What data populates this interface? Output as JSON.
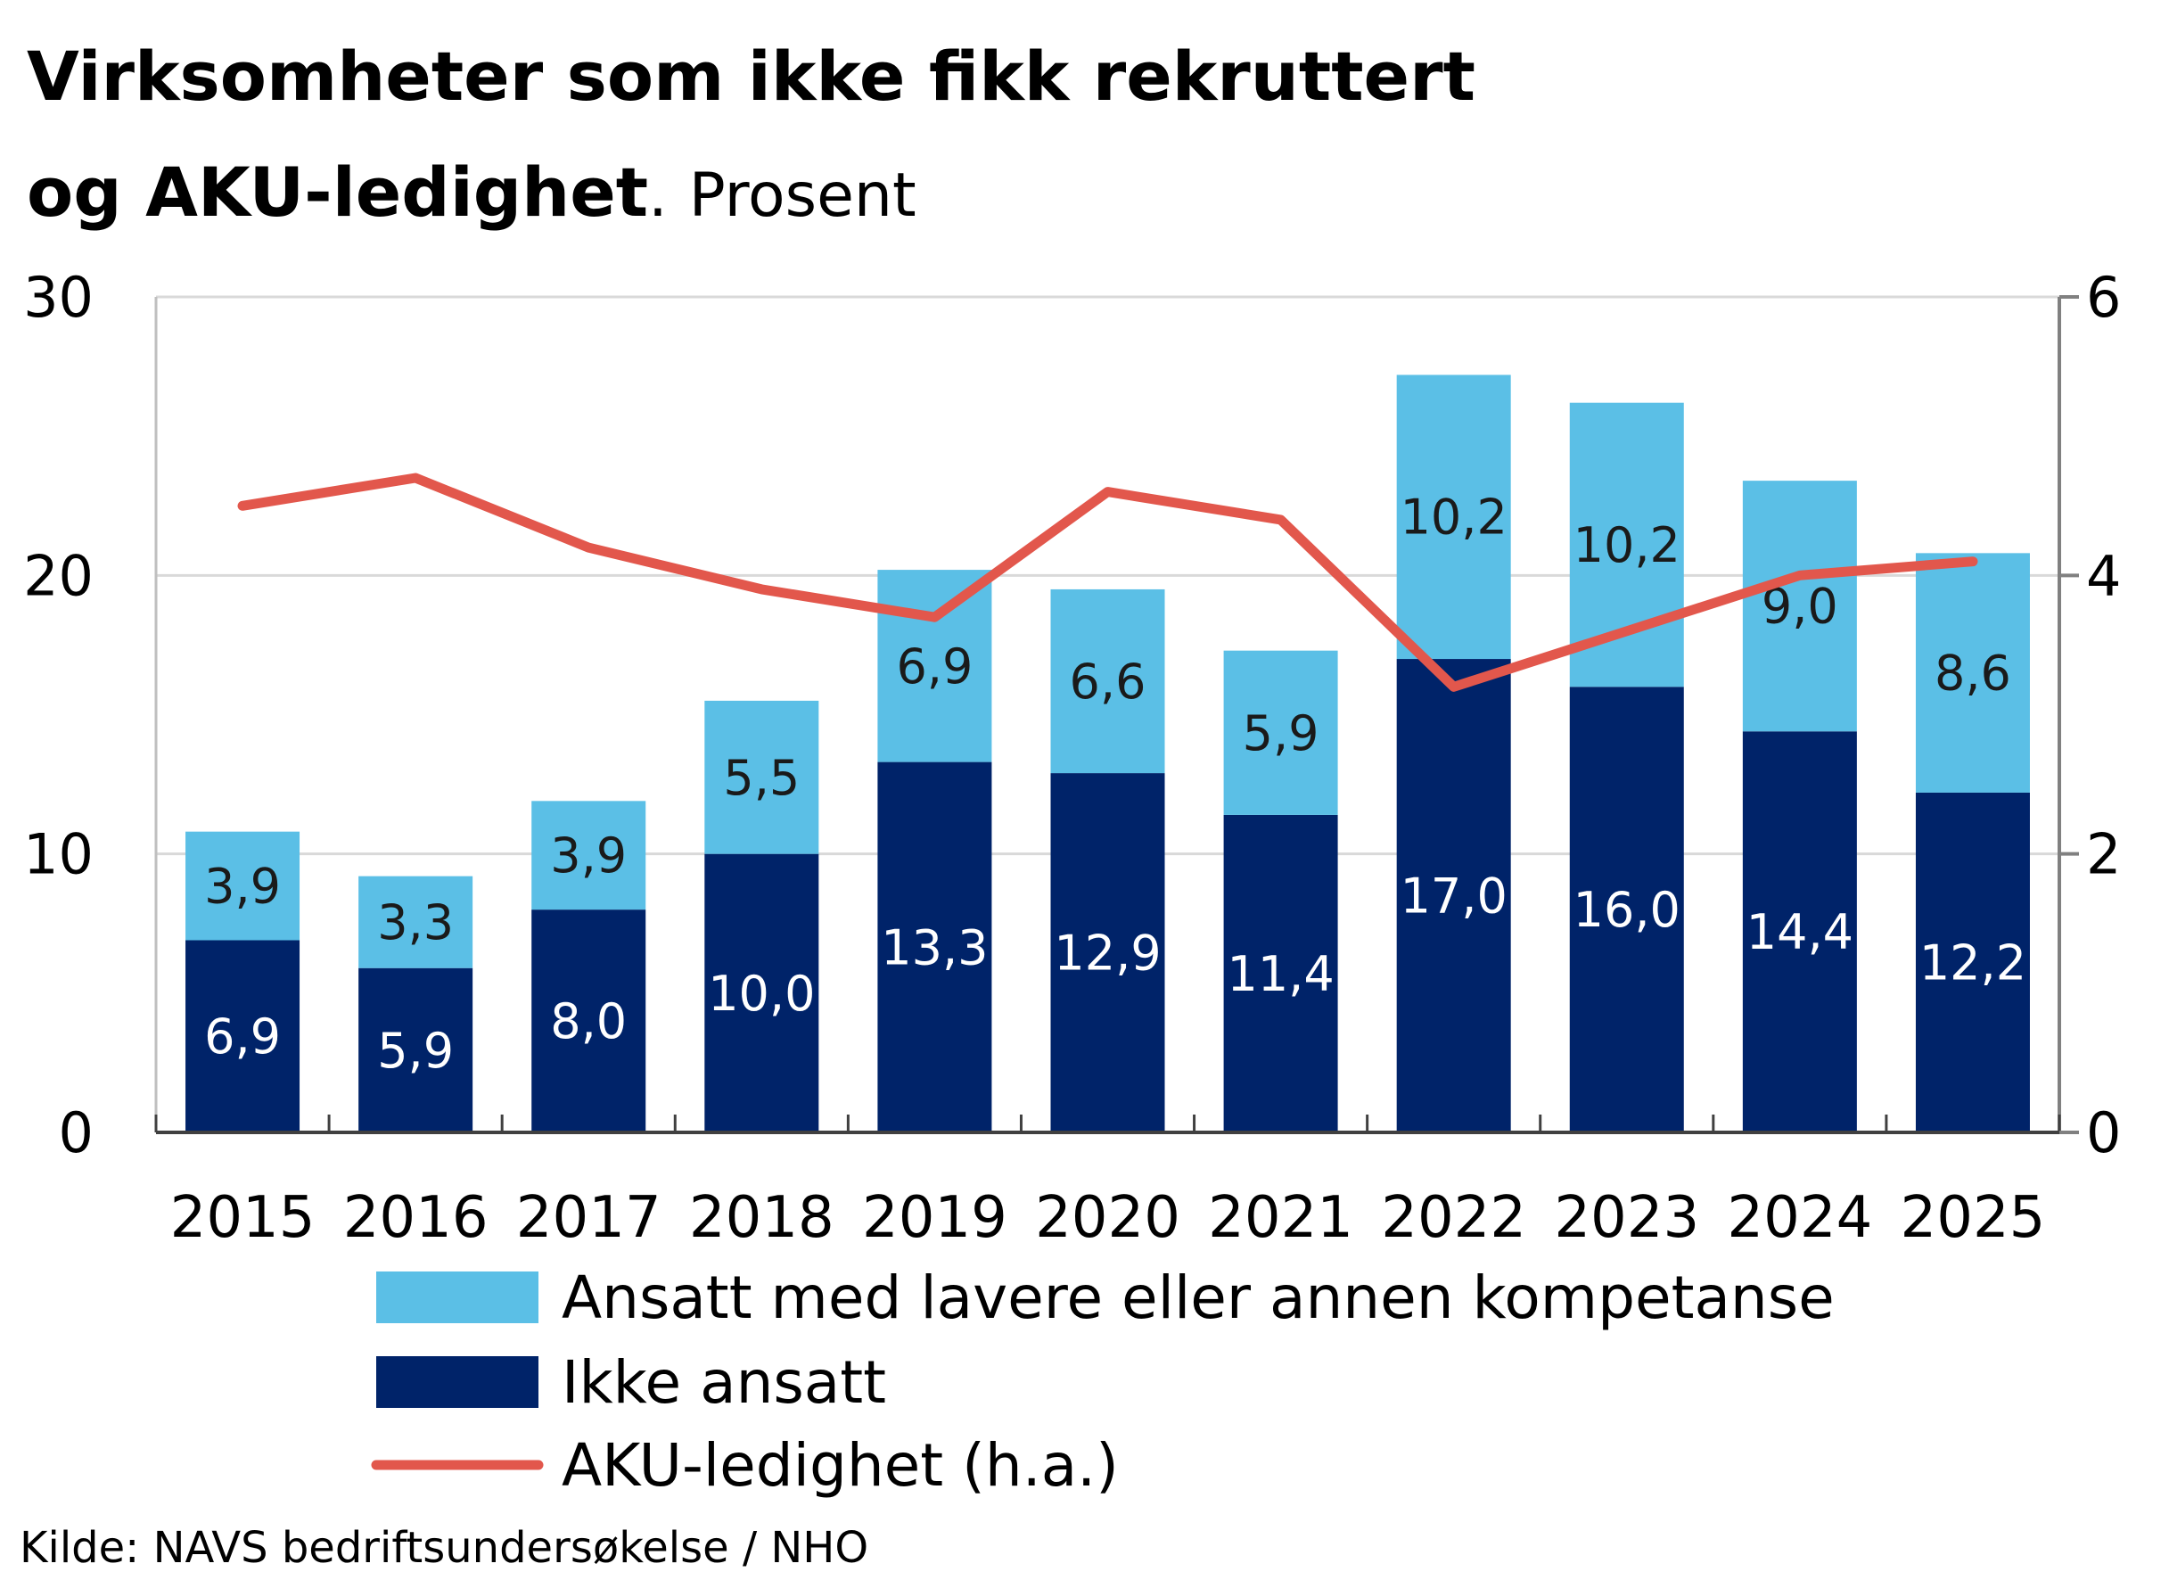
{
  "chart_data": {
    "type": "bar",
    "stacked": true,
    "title_line1": "Virksomheter som ikke fikk rekruttert",
    "title_line2": "og AKU-ledighet",
    "title_dot": ".",
    "unit": "Prosent",
    "categories": [
      "2015",
      "2016",
      "2017",
      "2018",
      "2019",
      "2020",
      "2021",
      "2022",
      "2023",
      "2024",
      "2025"
    ],
    "y_left": {
      "range": [
        0,
        30
      ],
      "ticks": [
        "0",
        "10",
        "20",
        "30"
      ]
    },
    "y_right": {
      "range": [
        0,
        6
      ],
      "ticks": [
        "0",
        "2",
        "4",
        "6"
      ]
    },
    "grid": "horizontal",
    "series": [
      {
        "name": "Ikke ansatt",
        "color": "#002369",
        "label_color": "#ffffff",
        "axis": "left",
        "values": [
          6.9,
          5.9,
          8.0,
          10.0,
          13.3,
          12.9,
          11.4,
          17.0,
          16.0,
          14.4,
          12.2
        ],
        "labels": [
          "6,9",
          "5,9",
          "8,0",
          "10,0",
          "13,3",
          "12,9",
          "11,4",
          "17,0",
          "16,0",
          "14,4",
          "12,2"
        ]
      },
      {
        "name": "Ansatt med lavere eller annen kompetanse",
        "color": "#5bbfe6",
        "label_color": "#1a1a1a",
        "axis": "left",
        "values": [
          3.9,
          3.3,
          3.9,
          5.5,
          6.9,
          6.6,
          5.9,
          10.2,
          10.2,
          9.0,
          8.6
        ],
        "labels": [
          "3,9",
          "3,3",
          "3,9",
          "5,5",
          "6,9",
          "6,6",
          "5,9",
          "10,2",
          "10,2",
          "9,0",
          "8,6"
        ]
      },
      {
        "name": "AKU-ledighet (h.a.)",
        "type": "line",
        "color": "#e2574c",
        "axis": "right",
        "values": [
          4.5,
          4.7,
          4.2,
          3.9,
          3.7,
          4.6,
          4.4,
          3.2,
          3.6,
          4.0,
          4.1
        ]
      }
    ],
    "legend": {
      "placement": "bottom",
      "order": [
        "Ansatt med lavere eller annen kompetanse",
        "Ikke ansatt",
        "AKU-ledighet (h.a.)"
      ]
    },
    "source": "Kilde: NAVS bedriftsundersøkelse / NHO"
  }
}
